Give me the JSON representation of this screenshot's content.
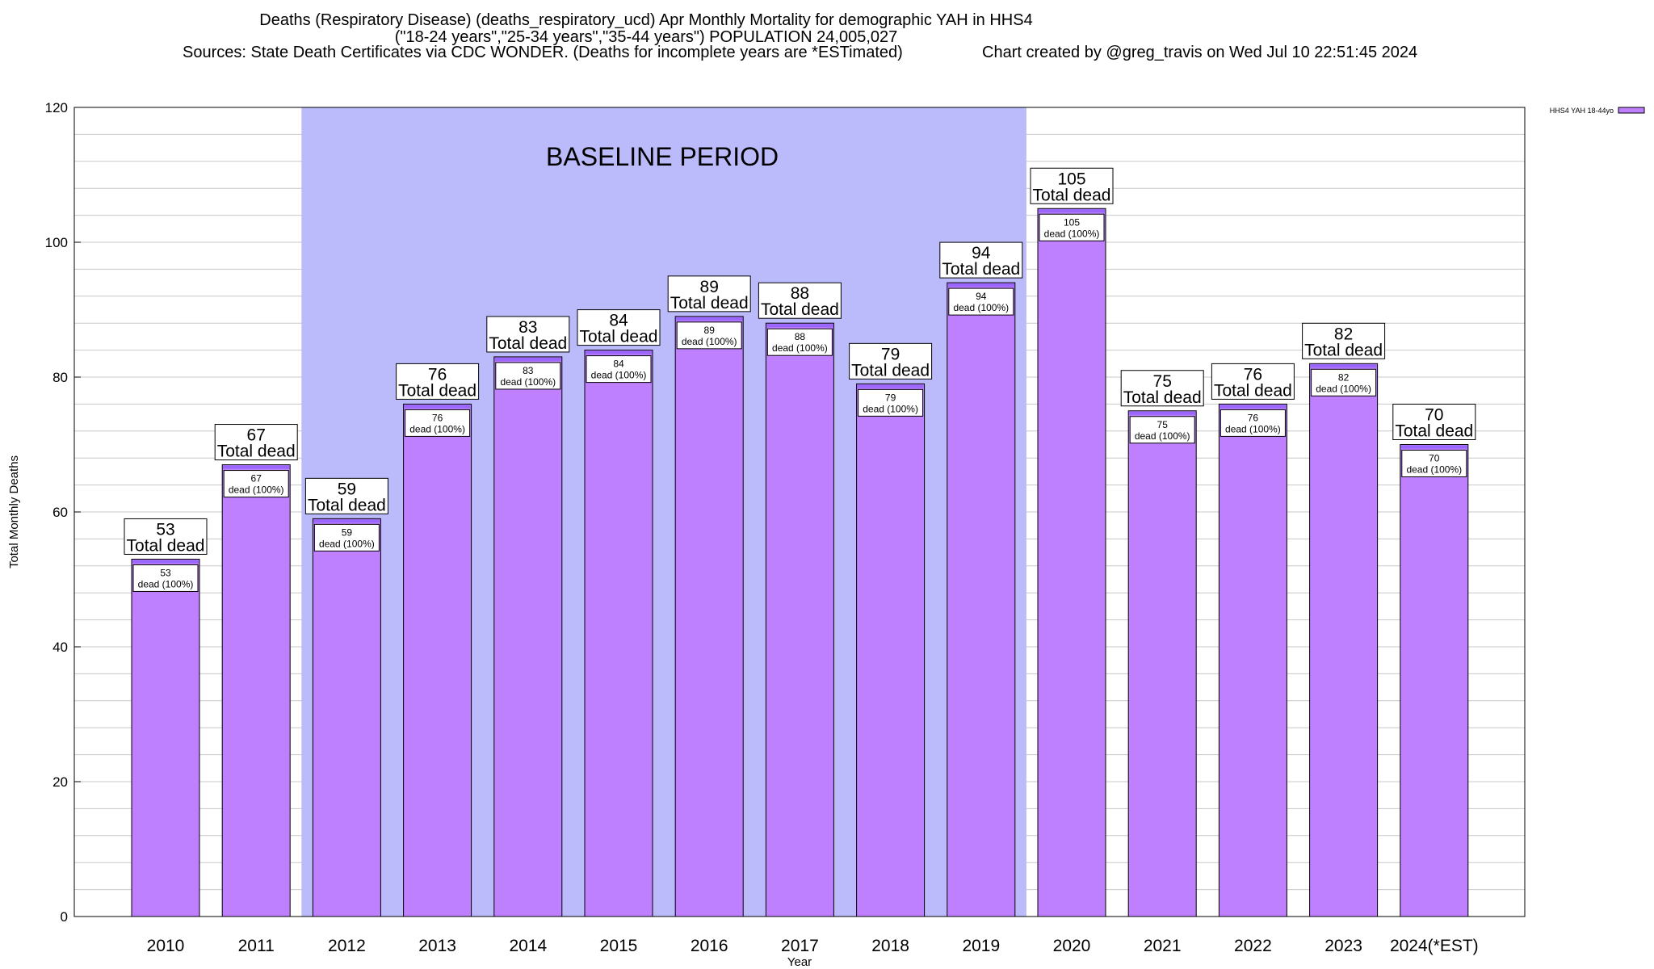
{
  "header": {
    "title_line1": "Deaths (Respiratory Disease) (deaths_respiratory_ucd) Apr Monthly Mortality for demographic YAH in HHS4",
    "title_line2": "(\"18-24 years\",\"25-34 years\",\"35-44 years\") POPULATION 24,005,027",
    "sources": "Sources: State Death Certificates via CDC WONDER. (Deaths for incomplete years are *ESTimated)",
    "credit": "Chart created by @greg_travis on Wed Jul 10 22:51:45 2024"
  },
  "chart_data": {
    "type": "bar",
    "categories": [
      "2010",
      "2011",
      "2012",
      "2013",
      "2014",
      "2015",
      "2016",
      "2017",
      "2018",
      "2019",
      "2020",
      "2021",
      "2022",
      "2023",
      "2024(*EST)"
    ],
    "series": [
      {
        "name": "HHS4 YAH 18-44yo",
        "values": [
          53,
          67,
          59,
          76,
          83,
          84,
          89,
          88,
          79,
          94,
          105,
          75,
          76,
          82,
          70
        ],
        "color": "#bf80ff"
      }
    ],
    "total_label_suffix": "Total dead",
    "inner_label_suffix": "dead (100%)",
    "xlabel": "Year",
    "ylabel": "Total Monthly Deaths",
    "ylim": [
      0,
      120
    ],
    "yticks": [
      0,
      20,
      40,
      60,
      80,
      100,
      120
    ],
    "minor_grid_step": 4,
    "baseline": {
      "label": "BASELINE PERIOD",
      "start": "2012",
      "end": "2019",
      "color": "#bbbbfb"
    },
    "grid": true,
    "legend_position": "top-right",
    "colors": {
      "bar_fill": "#bf80ff",
      "bar_cap": "#9966ff",
      "grid": "#c8c8c8"
    }
  }
}
